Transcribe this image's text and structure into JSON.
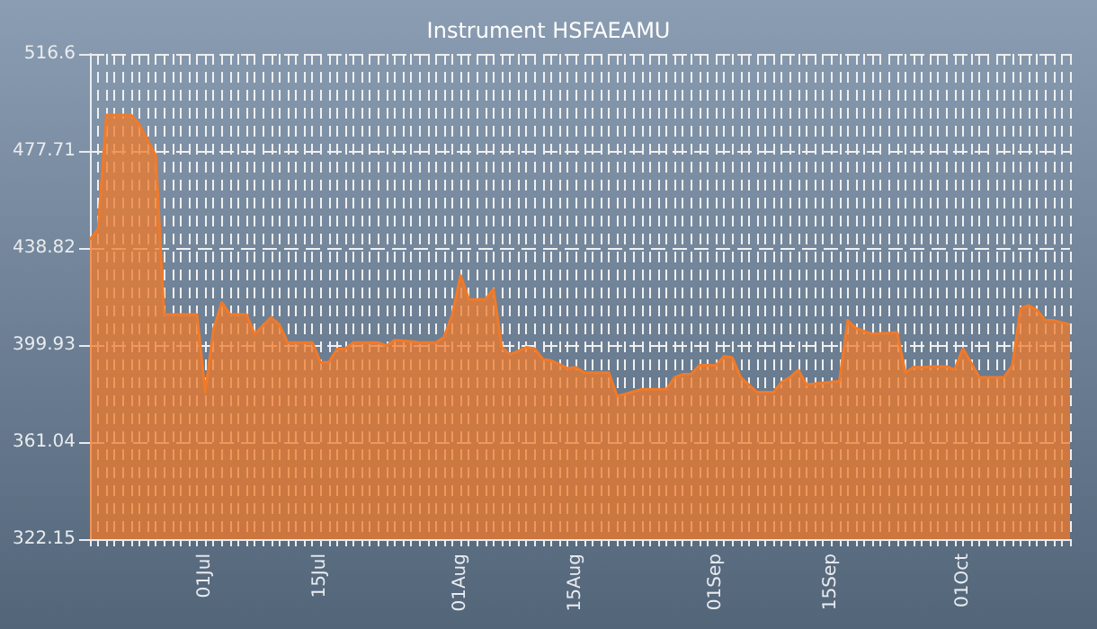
{
  "chart_data": {
    "type": "area",
    "title": "Instrument HSFAEAMU",
    "x": [
      "--06-17",
      "--06-18",
      "--06-19",
      "--06-22",
      "--06-23",
      "--06-25",
      "--06-26",
      "--06-30",
      "--07-01",
      "--07-02",
      "--07-03",
      "--07-04",
      "--07-06",
      "--07-07",
      "--07-09",
      "--07-10",
      "--07-11",
      "--07-14",
      "--07-15",
      "--07-16",
      "--07-17",
      "--07-18",
      "--07-19",
      "--07-22",
      "--07-23",
      "--07-24",
      "--07-26",
      "--07-27",
      "--07-29",
      "--07-30",
      "--07-31",
      "--08-01",
      "--08-02",
      "--08-04",
      "--08-05",
      "--08-06",
      "--08-07",
      "--08-09",
      "--08-10",
      "--08-11",
      "--08-12",
      "--08-14",
      "--08-15",
      "--08-16",
      "--08-19",
      "--08-20",
      "--08-21",
      "--08-23",
      "--08-26",
      "--08-27",
      "--08-28",
      "--08-29",
      "--08-30",
      "--09-01",
      "--09-02",
      "--09-03",
      "--09-04",
      "--09-06",
      "--09-08",
      "--09-09",
      "--09-10",
      "--09-11",
      "--09-12",
      "--09-16",
      "--09-17",
      "--09-18",
      "--09-20",
      "--09-23",
      "--09-24",
      "--09-25",
      "--09-26",
      "--09-27",
      "--09-29",
      "--09-30",
      "--10-01",
      "--10-03",
      "--10-06",
      "--10-07",
      "--10-08",
      "--10-09",
      "--10-10",
      "--10-11",
      "--10-12",
      "--10-14"
    ],
    "series": [
      {
        "color": "#f07a2a",
        "values": [
          442.2,
          446.5,
          492.1,
          492.1,
          488.3,
          475.8,
          412.2,
          412.2,
          381.0,
          406.2,
          417.0,
          412.2,
          412.2,
          404.3,
          411.0,
          408.1,
          400.9,
          400.9,
          393.0,
          393.0,
          398.3,
          398.5,
          400.9,
          400.9,
          399.7,
          401.9,
          401.4,
          400.9,
          400.9,
          403.1,
          412.2,
          427.8,
          418.2,
          418.2,
          422.3,
          399.0,
          396.1,
          399.0,
          398.5,
          394.2,
          393.7,
          390.6,
          391.0,
          388.9,
          388.9,
          379.5,
          380.3,
          382.2,
          382.2,
          387.0,
          388.2,
          388.2,
          391.8,
          391.8,
          395.4,
          394.9,
          387.0,
          381.0,
          381.0,
          385.1,
          387.0,
          389.9,
          384.1,
          385.4,
          409.8,
          406.7,
          404.3,
          405.0,
          388.9,
          391.1,
          390.9,
          391.3,
          391.3,
          390.1,
          398.5,
          387.0,
          387.0,
          391.8,
          414.6,
          415.8,
          413.9,
          409.8,
          409.8,
          408.1
        ]
      }
    ],
    "xlim": [
      "--06-17",
      "--10-14"
    ],
    "xticks": [
      {
        "value": "--07-01",
        "label": "01Jul"
      },
      {
        "value": "--07-15",
        "label": "15Jul"
      },
      {
        "value": "--08-01",
        "label": "01Aug"
      },
      {
        "value": "--08-15",
        "label": "15Aug"
      },
      {
        "value": "--09-01",
        "label": "01Sep"
      },
      {
        "value": "--09-15",
        "label": "15Sep"
      },
      {
        "value": "--10-01",
        "label": "01Oct"
      }
    ],
    "ylim": [
      322.15,
      516.6
    ],
    "yticks": [
      322.15,
      361.04,
      399.93,
      438.82,
      477.71,
      516.6
    ],
    "grid": true
  }
}
